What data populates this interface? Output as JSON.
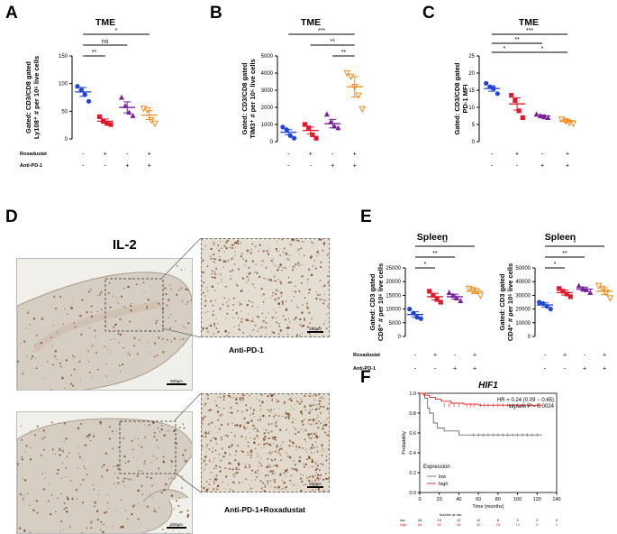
{
  "panels": {
    "A": "A",
    "B": "B",
    "C": "C",
    "D": "D",
    "E": "E",
    "F": "F"
  },
  "treatment_rows": {
    "roxadustat": {
      "label": "Roxadustat",
      "signs": [
        "-",
        "+",
        "-",
        "+"
      ]
    },
    "anti_pd1": {
      "label": "Anti-PD-1",
      "signs": [
        "-",
        "-",
        "+",
        "+"
      ]
    }
  },
  "colors": {
    "g1": "#2145d6",
    "g2": "#e0182a",
    "g3": "#7b1f9e",
    "g4": "#f08c1c",
    "km_low": "#6b6b6b",
    "km_high": "#e02020",
    "tissue": "#d3cabd",
    "stain": "#7a4a2a"
  },
  "chart_data": [
    {
      "id": "A",
      "type": "scatter",
      "title": "TME",
      "ylabel": "Gated: CD3/CD8 gated Ly108⁺ # per 10⁵ live cells",
      "ylim": [
        0,
        150
      ],
      "yticks": [
        0,
        50,
        100,
        150
      ],
      "groups": [
        {
          "mean": 85,
          "sem": 8,
          "points": [
            95,
            88,
            80,
            68
          ]
        },
        {
          "mean": 32,
          "sem": 4,
          "points": [
            40,
            32,
            28,
            26
          ]
        },
        {
          "mean": 57,
          "sem": 10,
          "points": [
            75,
            60,
            48,
            42
          ]
        },
        {
          "mean": 43,
          "sem": 8,
          "points": [
            55,
            52,
            34,
            28
          ]
        }
      ],
      "brackets": [
        {
          "from": 0,
          "to": 3,
          "label": "*"
        },
        {
          "from": 0,
          "to": 2,
          "label": "ns"
        },
        {
          "from": 0,
          "to": 1,
          "label": "**"
        }
      ]
    },
    {
      "id": "B",
      "type": "scatter",
      "title": "TME",
      "ylabel": "Gated: CD3/CD8 gated TIM3⁺ # per 10⁵ live cells",
      "ylim": [
        0,
        5000
      ],
      "yticks": [
        0,
        1000,
        2000,
        3000,
        4000,
        5000
      ],
      "groups": [
        {
          "mean": 550,
          "sem": 150,
          "points": [
            850,
            700,
            350,
            200
          ]
        },
        {
          "mean": 650,
          "sem": 200,
          "points": [
            1000,
            800,
            400,
            200
          ]
        },
        {
          "mean": 1050,
          "sem": 250,
          "points": [
            1600,
            1150,
            900,
            800
          ]
        },
        {
          "mean": 3200,
          "sem": 600,
          "points": [
            4000,
            3800,
            3200,
            2700,
            1900
          ]
        }
      ],
      "brackets": [
        {
          "from": 0,
          "to": 3,
          "label": "***"
        },
        {
          "from": 1,
          "to": 3,
          "label": "**"
        },
        {
          "from": 2,
          "to": 3,
          "label": "**"
        }
      ]
    },
    {
      "id": "C",
      "type": "scatter",
      "title": "TME",
      "ylabel": "Gated: CD3/CD8 gated PD-1 MFI",
      "ylim": [
        0,
        25
      ],
      "yticks": [
        0,
        5,
        10,
        15,
        20,
        25
      ],
      "groups": [
        {
          "mean": 15.5,
          "sem": 0.8,
          "points": [
            17,
            16,
            15.5,
            14
          ]
        },
        {
          "mean": 11,
          "sem": 1.8,
          "points": [
            13.5,
            12,
            9,
            7
          ]
        },
        {
          "mean": 7.5,
          "sem": 0.3,
          "points": [
            8,
            7.5,
            7.2,
            7
          ]
        },
        {
          "mean": 6,
          "sem": 0.4,
          "points": [
            6.5,
            6,
            5.5,
            5.3
          ]
        }
      ],
      "brackets": [
        {
          "from": 0,
          "to": 3,
          "label": "***"
        },
        {
          "from": 0,
          "to": 2,
          "label": "**"
        },
        {
          "from": 0,
          "to": 1,
          "label": "*"
        },
        {
          "from": 1,
          "to": 3,
          "label": "*"
        }
      ]
    },
    {
      "id": "E1",
      "type": "scatter",
      "title": "Spleen",
      "ylabel": "Gated: CD3 gated CD8⁺ # per 10⁵ live cells",
      "ylim": [
        0,
        25000
      ],
      "yticks": [
        0,
        5000,
        10000,
        15000,
        20000,
        25000
      ],
      "groups": [
        {
          "mean": 8000,
          "sem": 1000,
          "points": [
            10000,
            8500,
            7000,
            6500
          ]
        },
        {
          "mean": 14500,
          "sem": 1200,
          "points": [
            16500,
            15000,
            13500,
            12500
          ]
        },
        {
          "mean": 14500,
          "sem": 900,
          "points": [
            16000,
            15000,
            14000,
            13000
          ]
        },
        {
          "mean": 16500,
          "sem": 900,
          "points": [
            17500,
            17000,
            16500,
            15000
          ]
        }
      ],
      "brackets": [
        {
          "from": 0,
          "to": 3,
          "label": "**"
        },
        {
          "from": 0,
          "to": 2,
          "label": "**"
        },
        {
          "from": 0,
          "to": 1,
          "label": "*"
        }
      ]
    },
    {
      "id": "E2",
      "type": "scatter",
      "title": "Spleen",
      "ylabel": "Gated: CD3 gated CD4⁺ # per 10⁵ live cells",
      "ylim": [
        0,
        50000
      ],
      "yticks": [
        0,
        10000,
        20000,
        30000,
        40000,
        50000
      ],
      "groups": [
        {
          "mean": 23000,
          "sem": 1500,
          "points": [
            25000,
            24000,
            22000,
            20000
          ]
        },
        {
          "mean": 32000,
          "sem": 1800,
          "points": [
            35000,
            33000,
            31000,
            29000
          ]
        },
        {
          "mean": 34500,
          "sem": 1500,
          "points": [
            37000,
            35000,
            34000,
            32000
          ]
        },
        {
          "mean": 33000,
          "sem": 2500,
          "points": [
            37000,
            35000,
            32000,
            28000
          ]
        }
      ],
      "brackets": [
        {
          "from": 0,
          "to": 3,
          "label": "*"
        },
        {
          "from": 0,
          "to": 2,
          "label": "**"
        },
        {
          "from": 0,
          "to": 1,
          "label": "*"
        }
      ]
    },
    {
      "id": "F",
      "type": "line",
      "title": "HIF1",
      "xlabel": "Time (months)",
      "ylabel": "Probability",
      "xlim": [
        0,
        140
      ],
      "ylim": [
        0,
        1
      ],
      "xticks": [
        0,
        20,
        40,
        60,
        80,
        100,
        120,
        140
      ],
      "yticks": [
        0,
        0.2,
        0.4,
        0.6,
        0.8,
        1
      ],
      "ytick_labels": [
        "0.0",
        "0.2",
        "0.4",
        "0.6",
        "0.8",
        "1.0"
      ],
      "hr_text": "HR = 0.24 (0.09 − 0.65)",
      "logrank_text": "logrank P = 0.0024",
      "legend": {
        "title": "Expression",
        "items": [
          "low",
          "high"
        ]
      },
      "series": [
        {
          "name": "low",
          "steps": [
            [
              0,
              1
            ],
            [
              5,
              0.95
            ],
            [
              8,
              0.85
            ],
            [
              10,
              0.8
            ],
            [
              14,
              0.7
            ],
            [
              18,
              0.65
            ],
            [
              25,
              0.62
            ],
            [
              40,
              0.58
            ],
            [
              125,
              0.58
            ]
          ]
        },
        {
          "name": "high",
          "steps": [
            [
              0,
              1
            ],
            [
              4,
              0.98
            ],
            [
              10,
              0.96
            ],
            [
              16,
              0.94
            ],
            [
              22,
              0.92
            ],
            [
              32,
              0.9
            ],
            [
              45,
              0.89
            ],
            [
              60,
              0.88
            ],
            [
              125,
              0.88
            ]
          ]
        }
      ],
      "censor_low": [
        55,
        60,
        65,
        70,
        75,
        80,
        85,
        90,
        95,
        100,
        105,
        110,
        115,
        120
      ],
      "censor_high": [
        25,
        30,
        35,
        40,
        48,
        52,
        56,
        62,
        66,
        70,
        75,
        80,
        85,
        90,
        95,
        100,
        105,
        110,
        115,
        120
      ],
      "risk_table": {
        "title": "Number at risk",
        "low": {
          "label": "low",
          "values": [
            "26",
            "13",
            "12",
            "12",
            "8",
            "3",
            "2",
            "0"
          ]
        },
        "high": {
          "label": "high",
          "values": [
            "68",
            "60",
            "56",
            "50",
            "29",
            "13",
            "5",
            "0"
          ]
        }
      }
    }
  ],
  "section_d": {
    "title": "IL-2",
    "top_caption": "Anti-PD-1",
    "bottom_caption": "Anti-PD-1+Roxadustat",
    "scale_500": "500μm",
    "scale_200": "200μm"
  }
}
